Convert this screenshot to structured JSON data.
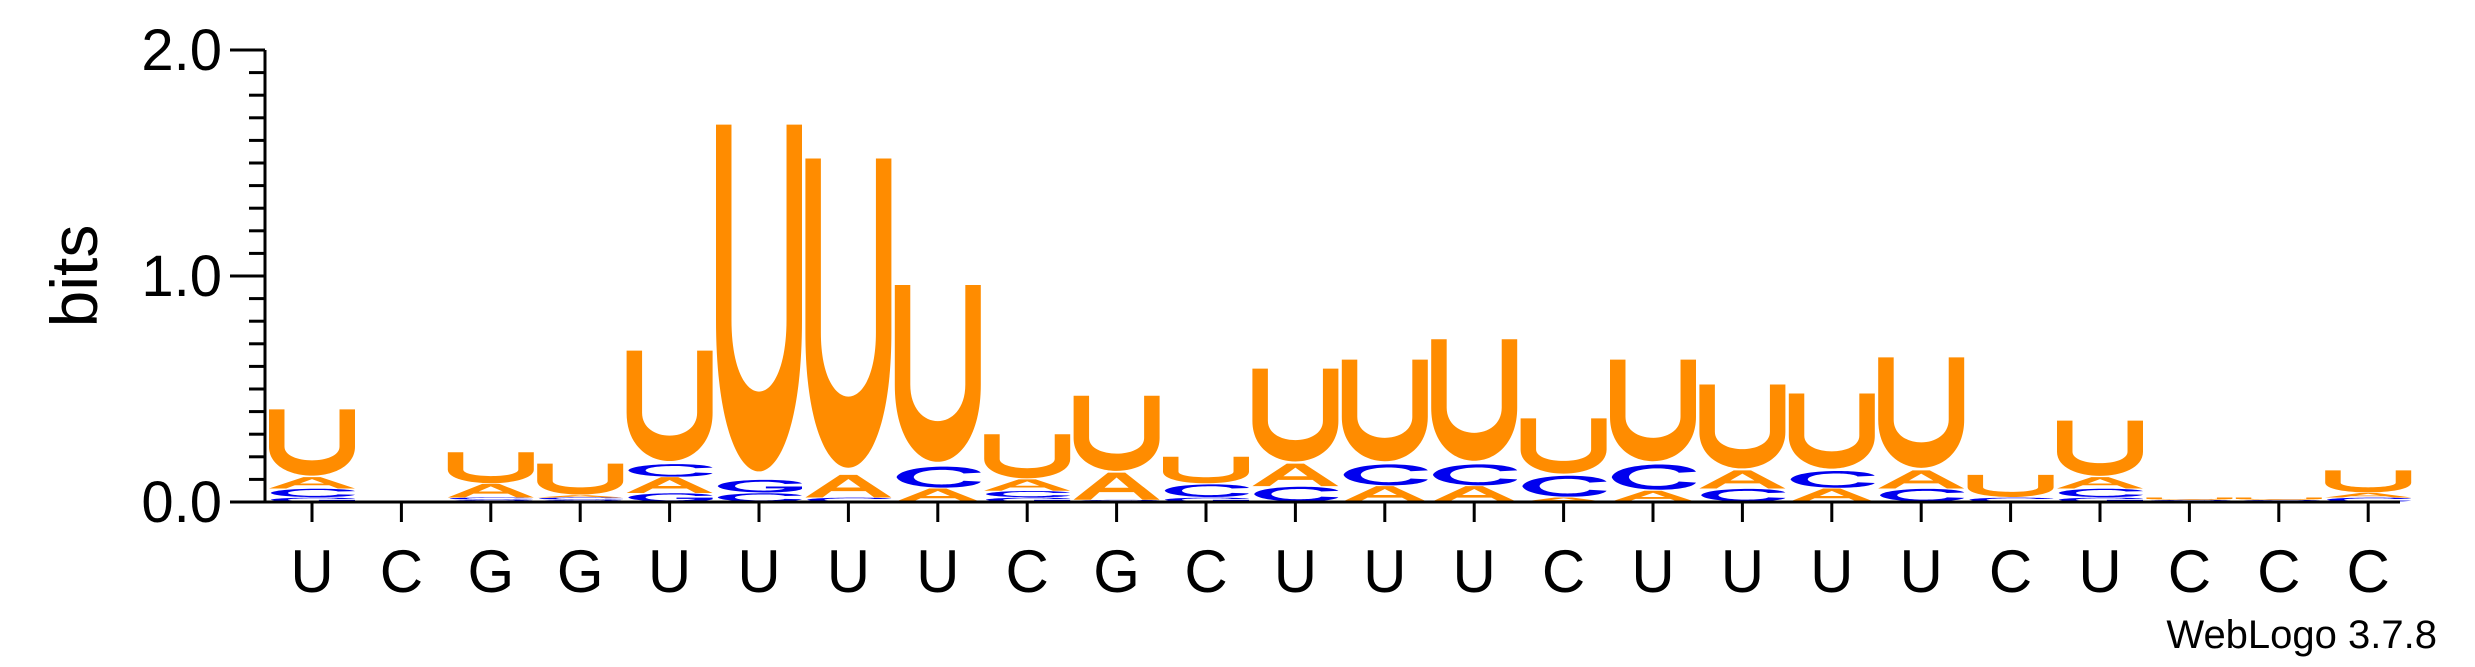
{
  "chart_data": {
    "type": "sequence-logo",
    "ylabel": "bits",
    "ylim": [
      0,
      2
    ],
    "y_ticks": [
      "0.0",
      "1.0",
      "2.0"
    ],
    "credit": "WebLogo 3.7.8",
    "colors": {
      "U": "#FF8C00",
      "A": "#FF8C00",
      "C": "#0000EE",
      "G": "#0000EE"
    },
    "consensus": [
      "U",
      "C",
      "G",
      "G",
      "U",
      "U",
      "U",
      "U",
      "C",
      "G",
      "C",
      "U",
      "U",
      "U",
      "C",
      "U",
      "U",
      "U",
      "U",
      "C",
      "U",
      "C",
      "C",
      "C"
    ],
    "stacks": [
      [
        [
          "G",
          0.02
        ],
        [
          "C",
          0.04
        ],
        [
          "A",
          0.05
        ],
        [
          "U",
          0.3
        ]
      ],
      [],
      [
        [
          "G",
          0.01
        ],
        [
          "C",
          0.01
        ],
        [
          "A",
          0.06
        ],
        [
          "U",
          0.14
        ]
      ],
      [
        [
          "G",
          0.01
        ],
        [
          "C",
          0.01
        ],
        [
          "A",
          0.01
        ],
        [
          "U",
          0.14
        ]
      ],
      [
        [
          "G",
          0.04
        ],
        [
          "A",
          0.07
        ],
        [
          "C",
          0.06
        ],
        [
          "U",
          0.5
        ]
      ],
      [
        [
          "C",
          0.04
        ],
        [
          "G",
          0.06
        ],
        [
          "U",
          1.57
        ]
      ],
      [
        [
          "C",
          0.02
        ],
        [
          "A",
          0.1
        ],
        [
          "U",
          1.4
        ]
      ],
      [
        [
          "A",
          0.06
        ],
        [
          "C",
          0.1
        ],
        [
          "U",
          0.8
        ]
      ],
      [
        [
          "G",
          0.02
        ],
        [
          "C",
          0.03
        ],
        [
          "A",
          0.05
        ],
        [
          "U",
          0.2
        ]
      ],
      [
        [
          "C",
          0.01
        ],
        [
          "A",
          0.12
        ],
        [
          "U",
          0.34
        ]
      ],
      [
        [
          "G",
          0.02
        ],
        [
          "C",
          0.06
        ],
        [
          "U",
          0.12
        ]
      ],
      [
        [
          "C",
          0.07
        ],
        [
          "A",
          0.1
        ],
        [
          "U",
          0.42
        ]
      ],
      [
        [
          "A",
          0.07
        ],
        [
          "C",
          0.1
        ],
        [
          "U",
          0.46
        ]
      ],
      [
        [
          "A",
          0.07
        ],
        [
          "C",
          0.1
        ],
        [
          "U",
          0.55
        ]
      ],
      [
        [
          "A",
          0.02
        ],
        [
          "C",
          0.1
        ],
        [
          "U",
          0.25
        ]
      ],
      [
        [
          "A",
          0.05
        ],
        [
          "C",
          0.12
        ],
        [
          "U",
          0.46
        ]
      ],
      [
        [
          "C",
          0.06
        ],
        [
          "A",
          0.08
        ],
        [
          "U",
          0.38
        ]
      ],
      [
        [
          "A",
          0.06
        ],
        [
          "C",
          0.08
        ],
        [
          "U",
          0.34
        ]
      ],
      [
        [
          "C",
          0.06
        ],
        [
          "A",
          0.08
        ],
        [
          "U",
          0.5
        ]
      ],
      [
        [
          "C",
          0.02
        ],
        [
          "U",
          0.1
        ]
      ],
      [
        [
          "G",
          0.02
        ],
        [
          "C",
          0.04
        ],
        [
          "A",
          0.05
        ],
        [
          "U",
          0.25
        ]
      ],
      [
        [
          "C",
          0.01
        ],
        [
          "U",
          0.01
        ]
      ],
      [
        [
          "C",
          0.01
        ],
        [
          "U",
          0.01
        ]
      ],
      [
        [
          "C",
          0.02
        ],
        [
          "A",
          0.02
        ],
        [
          "U",
          0.1
        ]
      ]
    ]
  }
}
